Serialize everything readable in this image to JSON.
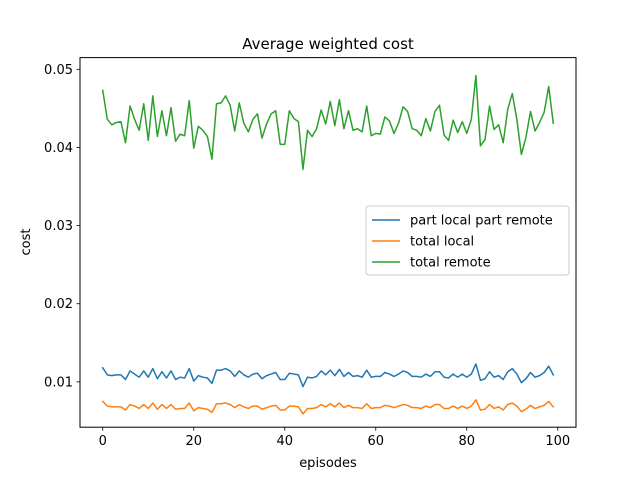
{
  "chart_data": {
    "type": "line",
    "title": "Average weighted cost",
    "xlabel": "episodes",
    "ylabel": "cost",
    "xlim": [
      -5,
      104
    ],
    "ylim": [
      0.0042,
      0.0515
    ],
    "xticks": [
      0,
      20,
      40,
      60,
      80,
      100
    ],
    "yticks": [
      0.01,
      0.02,
      0.03,
      0.04,
      0.05
    ],
    "xtick_labels": [
      "0",
      "20",
      "40",
      "60",
      "80",
      "100"
    ],
    "ytick_labels": [
      "0.01",
      "0.02",
      "0.03",
      "0.04",
      "0.05"
    ],
    "grid": false,
    "legend_position": "center-right",
    "x": [
      0,
      1,
      2,
      3,
      4,
      5,
      6,
      7,
      8,
      9,
      10,
      11,
      12,
      13,
      14,
      15,
      16,
      17,
      18,
      19,
      20,
      21,
      22,
      23,
      24,
      25,
      26,
      27,
      28,
      29,
      30,
      31,
      32,
      33,
      34,
      35,
      36,
      37,
      38,
      39,
      40,
      41,
      42,
      43,
      44,
      45,
      46,
      47,
      48,
      49,
      50,
      51,
      52,
      53,
      54,
      55,
      56,
      57,
      58,
      59,
      60,
      61,
      62,
      63,
      64,
      65,
      66,
      67,
      68,
      69,
      70,
      71,
      72,
      73,
      74,
      75,
      76,
      77,
      78,
      79,
      80,
      81,
      82,
      83,
      84,
      85,
      86,
      87,
      88,
      89,
      90,
      91,
      92,
      93,
      94,
      95,
      96,
      97,
      98,
      99
    ],
    "series": [
      {
        "name": "part local part remote",
        "color": "#1f77b4",
        "values": [
          0.0118,
          0.0109,
          0.0108,
          0.0109,
          0.0109,
          0.0103,
          0.0114,
          0.011,
          0.0106,
          0.0114,
          0.0106,
          0.0117,
          0.0104,
          0.0113,
          0.0105,
          0.0114,
          0.0103,
          0.0106,
          0.0105,
          0.0117,
          0.0101,
          0.0108,
          0.0106,
          0.0105,
          0.0098,
          0.0115,
          0.0115,
          0.0117,
          0.0114,
          0.0107,
          0.0114,
          0.0109,
          0.0106,
          0.011,
          0.0111,
          0.0104,
          0.0108,
          0.011,
          0.0112,
          0.0103,
          0.0103,
          0.0111,
          0.011,
          0.0109,
          0.0094,
          0.0106,
          0.0105,
          0.0107,
          0.0114,
          0.0109,
          0.0115,
          0.0108,
          0.0116,
          0.0107,
          0.0112,
          0.0107,
          0.0108,
          0.0106,
          0.0115,
          0.0106,
          0.0107,
          0.0107,
          0.0112,
          0.011,
          0.0107,
          0.011,
          0.0114,
          0.0112,
          0.0107,
          0.0107,
          0.0106,
          0.011,
          0.0107,
          0.0113,
          0.0113,
          0.0106,
          0.0105,
          0.011,
          0.0106,
          0.011,
          0.0106,
          0.011,
          0.0123,
          0.0102,
          0.0104,
          0.0113,
          0.0106,
          0.0108,
          0.0103,
          0.0113,
          0.0117,
          0.011,
          0.0099,
          0.0104,
          0.0112,
          0.0106,
          0.0108,
          0.0112,
          0.012,
          0.0109
        ]
      },
      {
        "name": "total local",
        "color": "#ff7f0e",
        "values": [
          0.0075,
          0.0069,
          0.0068,
          0.0068,
          0.0068,
          0.0064,
          0.0071,
          0.0069,
          0.0066,
          0.0071,
          0.0066,
          0.0073,
          0.0065,
          0.0071,
          0.0066,
          0.0071,
          0.0065,
          0.0066,
          0.0066,
          0.0073,
          0.0063,
          0.0067,
          0.0066,
          0.0065,
          0.0061,
          0.0072,
          0.0072,
          0.0073,
          0.0071,
          0.0067,
          0.0071,
          0.0068,
          0.0066,
          0.0069,
          0.0069,
          0.0065,
          0.0067,
          0.0069,
          0.007,
          0.0064,
          0.0064,
          0.0069,
          0.0069,
          0.0068,
          0.0059,
          0.0066,
          0.0066,
          0.0067,
          0.0071,
          0.0068,
          0.0072,
          0.0068,
          0.0073,
          0.0067,
          0.007,
          0.0067,
          0.0067,
          0.0066,
          0.0072,
          0.0066,
          0.0067,
          0.0067,
          0.007,
          0.0069,
          0.0067,
          0.0069,
          0.0071,
          0.007,
          0.0067,
          0.0067,
          0.0066,
          0.0069,
          0.0067,
          0.0071,
          0.0071,
          0.0066,
          0.0066,
          0.0069,
          0.0066,
          0.0069,
          0.0066,
          0.0069,
          0.0077,
          0.0064,
          0.0065,
          0.0071,
          0.0066,
          0.0068,
          0.0064,
          0.0071,
          0.0073,
          0.0069,
          0.0062,
          0.0065,
          0.007,
          0.0066,
          0.0068,
          0.007,
          0.0075,
          0.0068
        ]
      },
      {
        "name": "total remote",
        "color": "#2ca02c",
        "values": [
          0.0473,
          0.0436,
          0.0429,
          0.0432,
          0.0433,
          0.0406,
          0.0453,
          0.0436,
          0.0422,
          0.0456,
          0.0409,
          0.0466,
          0.0414,
          0.0447,
          0.0415,
          0.0451,
          0.0408,
          0.0417,
          0.0415,
          0.046,
          0.0399,
          0.0427,
          0.0422,
          0.0414,
          0.0385,
          0.0456,
          0.0457,
          0.0466,
          0.0454,
          0.0421,
          0.0457,
          0.0431,
          0.042,
          0.0436,
          0.0443,
          0.0412,
          0.043,
          0.0443,
          0.0447,
          0.0404,
          0.0404,
          0.0447,
          0.0437,
          0.0433,
          0.0372,
          0.0422,
          0.0414,
          0.0424,
          0.0448,
          0.043,
          0.0459,
          0.0428,
          0.0461,
          0.0424,
          0.0447,
          0.0422,
          0.0424,
          0.042,
          0.0453,
          0.0415,
          0.0418,
          0.0417,
          0.0439,
          0.0434,
          0.0418,
          0.0431,
          0.0452,
          0.0446,
          0.0424,
          0.0422,
          0.0415,
          0.0437,
          0.0421,
          0.0446,
          0.0454,
          0.0416,
          0.0409,
          0.0435,
          0.0419,
          0.0433,
          0.0418,
          0.0436,
          0.0492,
          0.0402,
          0.041,
          0.0453,
          0.0423,
          0.0429,
          0.0406,
          0.0449,
          0.0469,
          0.0436,
          0.0391,
          0.0413,
          0.0446,
          0.0421,
          0.0432,
          0.0445,
          0.0478,
          0.0431
        ]
      }
    ]
  }
}
